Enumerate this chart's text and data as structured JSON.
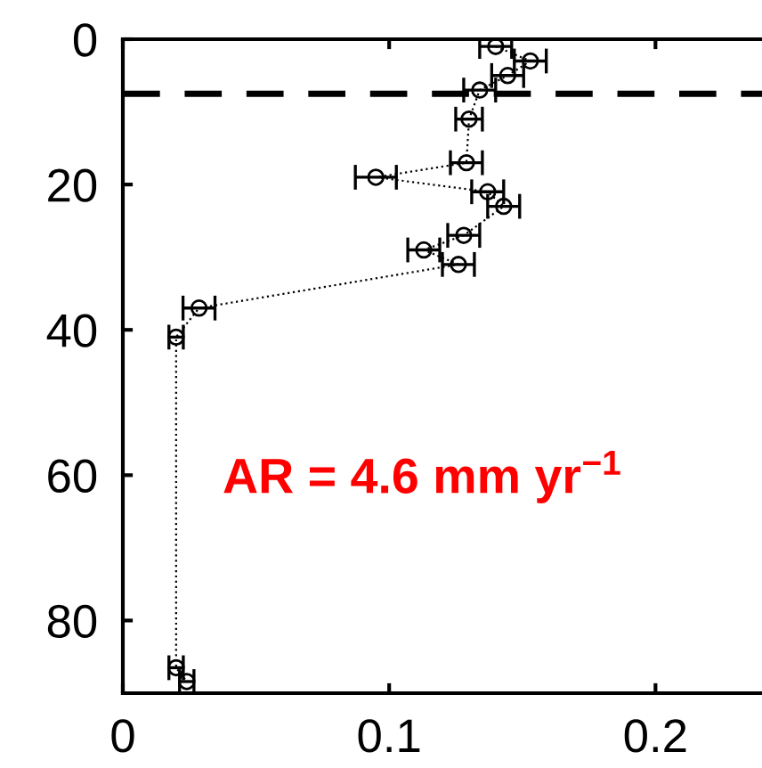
{
  "chart_data": {
    "type": "line",
    "x": [
      0.14,
      0.153,
      0.1445,
      0.134,
      0.13,
      0.129,
      0.095,
      0.137,
      0.143,
      0.128,
      0.113,
      0.126,
      0.0286,
      0.02,
      0.02,
      0.024
    ],
    "values": [
      1,
      3,
      5,
      7,
      11,
      17,
      19,
      21,
      23,
      27,
      29,
      31,
      37,
      41,
      86.5,
      88.4
    ],
    "xerrors": [
      0.006,
      0.006,
      0.006,
      0.006,
      0.005,
      0.006,
      0.0077,
      0.006,
      0.006,
      0.006,
      0.006,
      0.006,
      0.006,
      0.0027,
      0.0027,
      0.0027
    ],
    "color": "#000000",
    "marker": "circle",
    "line_style": "dotted",
    "xlim": [
      0,
      0.24
    ],
    "ylim": [
      90,
      0
    ],
    "xticks": [
      0,
      0.1,
      0.2
    ],
    "yticks": [
      0,
      20,
      40,
      60,
      80
    ],
    "ref_lines": [
      {
        "axis": "y",
        "value": 7.5,
        "color": "#000000",
        "line_style": "dashed"
      }
    ],
    "annotations": [
      "AR = 4.6 mm yr$^{−1}$"
    ],
    "grid": false,
    "legend": false
  }
}
